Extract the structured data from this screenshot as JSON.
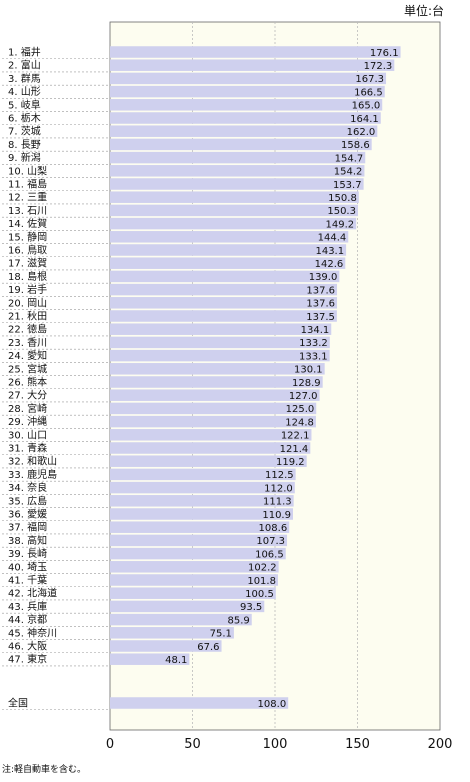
{
  "chart_data": {
    "type": "bar",
    "orientation": "horizontal",
    "unit": "単位:台",
    "note": "注:軽自動車を含む。",
    "xlim": [
      0,
      200
    ],
    "xticks": [
      "0",
      "50",
      "100",
      "150",
      "200"
    ],
    "grid": true,
    "series": [
      {
        "values": [
          176.1,
          172.3,
          167.3,
          166.5,
          165.0,
          164.1,
          162.0,
          158.6,
          154.7,
          154.2,
          153.7,
          150.8,
          150.3,
          149.2,
          144.4,
          143.1,
          142.6,
          139.0,
          137.6,
          137.6,
          137.5,
          134.1,
          133.2,
          133.1,
          130.1,
          128.9,
          127.0,
          125.0,
          124.8,
          122.1,
          121.4,
          119.2,
          112.5,
          112.0,
          111.3,
          110.9,
          108.6,
          107.3,
          106.5,
          102.2,
          101.8,
          100.5,
          93.5,
          85.9,
          75.1,
          67.6,
          48.1
        ]
      }
    ],
    "categories": [
      "1. 福井",
      "2. 富山",
      "3. 群馬",
      "4. 山形",
      "5. 岐阜",
      "6. 栃木",
      "7. 茨城",
      "8. 長野",
      "9. 新潟",
      "10. 山梨",
      "11. 福島",
      "12. 三重",
      "13. 石川",
      "14. 佐賀",
      "15. 静岡",
      "16. 鳥取",
      "17. 滋賀",
      "18. 島根",
      "19. 岩手",
      "20. 岡山",
      "21. 秋田",
      "22. 徳島",
      "23. 香川",
      "24. 愛知",
      "25. 宮城",
      "26. 熊本",
      "27. 大分",
      "28. 宮崎",
      "29. 沖縄",
      "30. 山口",
      "31. 青森",
      "32. 和歌山",
      "33. 鹿児島",
      "34. 奈良",
      "35. 広島",
      "36. 愛媛",
      "37. 福岡",
      "38. 高知",
      "39. 長崎",
      "40. 埼玉",
      "41. 千葉",
      "42. 北海道",
      "43. 兵庫",
      "44. 京都",
      "45. 神奈川",
      "46. 大阪",
      "47. 東京"
    ],
    "national": {
      "label": "全国",
      "value": 108.0
    },
    "value_labels": [
      "176.1",
      "172.3",
      "167.3",
      "166.5",
      "165.0",
      "164.1",
      "162.0",
      "158.6",
      "154.7",
      "154.2",
      "153.7",
      "150.8",
      "150.3",
      "149.2",
      "144.4",
      "143.1",
      "142.6",
      "139.0",
      "137.6",
      "137.6",
      "137.5",
      "134.1",
      "133.2",
      "133.1",
      "130.1",
      "128.9",
      "127.0",
      "125.0",
      "124.8",
      "122.1",
      "121.4",
      "119.2",
      "112.5",
      "112.0",
      "111.3",
      "110.9",
      "108.6",
      "107.3",
      "106.5",
      "102.2",
      "101.8",
      "100.5",
      "93.5",
      "85.9",
      "75.1",
      "67.6",
      "48.1"
    ],
    "national_value_label": "108.0",
    "colors": {
      "bar": "#cfd0ee",
      "plot_bg": "#fdfdf0",
      "grid": "#bbbbbb",
      "text": "#111111"
    }
  }
}
